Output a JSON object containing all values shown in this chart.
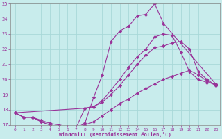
{
  "xlabel": "Windchill (Refroidissement éolien,°C)",
  "xlim": [
    -0.5,
    23.5
  ],
  "ylim": [
    17,
    25
  ],
  "yticks": [
    17,
    18,
    19,
    20,
    21,
    22,
    23,
    24,
    25
  ],
  "xticks": [
    0,
    1,
    2,
    3,
    4,
    5,
    6,
    7,
    8,
    9,
    10,
    11,
    12,
    13,
    14,
    15,
    16,
    17,
    18,
    19,
    20,
    21,
    22,
    23
  ],
  "bg_color": "#c8ecec",
  "grid_color": "#a8d8d8",
  "line_color": "#993399",
  "lines": [
    {
      "x": [
        0,
        1,
        2,
        3,
        4,
        5,
        6,
        7,
        8,
        9,
        10,
        11,
        12,
        13,
        14,
        15,
        16,
        17,
        23
      ],
      "y": [
        17.8,
        17.5,
        17.5,
        17.2,
        17.0,
        16.9,
        16.8,
        16.8,
        17.1,
        18.8,
        20.3,
        22.5,
        23.2,
        23.5,
        24.2,
        24.3,
        25.0,
        23.7,
        19.7
      ]
    },
    {
      "x": [
        0,
        1,
        2,
        3,
        4,
        5,
        6,
        7,
        8,
        9,
        10,
        11,
        12,
        13,
        14,
        15,
        16,
        17,
        18,
        19,
        20,
        21,
        22,
        23
      ],
      "y": [
        17.8,
        17.5,
        17.5,
        17.2,
        17.0,
        16.9,
        16.8,
        16.8,
        18.1,
        18.2,
        18.6,
        19.3,
        20.0,
        20.8,
        21.5,
        22.0,
        22.8,
        23.0,
        22.9,
        21.8,
        20.5,
        20.0,
        19.8,
        19.7
      ]
    },
    {
      "x": [
        0,
        8,
        9,
        10,
        11,
        12,
        13,
        14,
        15,
        16,
        17,
        18,
        19,
        20,
        21,
        22,
        23
      ],
      "y": [
        17.8,
        18.1,
        18.2,
        18.5,
        19.0,
        19.6,
        20.3,
        21.0,
        21.6,
        22.1,
        22.2,
        22.4,
        22.5,
        22.0,
        20.5,
        20.0,
        19.6
      ]
    },
    {
      "x": [
        0,
        1,
        2,
        3,
        4,
        5,
        6,
        7,
        8,
        9,
        10,
        11,
        12,
        13,
        14,
        15,
        16,
        17,
        18,
        19,
        20,
        21,
        22,
        23
      ],
      "y": [
        17.8,
        17.5,
        17.5,
        17.3,
        17.1,
        17.0,
        16.9,
        16.9,
        17.0,
        17.2,
        17.6,
        18.0,
        18.4,
        18.7,
        19.1,
        19.4,
        19.7,
        20.0,
        20.2,
        20.4,
        20.6,
        20.3,
        19.9,
        19.6
      ]
    }
  ]
}
